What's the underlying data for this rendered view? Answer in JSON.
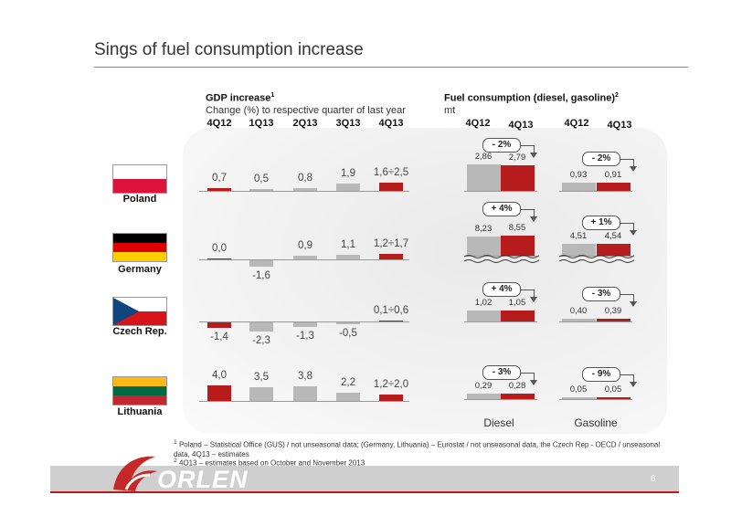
{
  "title": "Sings of fuel consumption increase",
  "gdp": {
    "title": "GDP increase",
    "title_sup": "1",
    "subtitle": "Change (%) to respective quarter of last year",
    "periods": [
      "4Q12",
      "1Q13",
      "2Q13",
      "3Q13",
      "4Q13"
    ]
  },
  "fuel": {
    "title": "Fuel consumption (diesel, gasoline)",
    "title_sup": "2",
    "unit": "mt",
    "diesel_periods": [
      "4Q12",
      "4Q13"
    ],
    "gasoline_periods": [
      "4Q12",
      "4Q13"
    ],
    "diesel_label": "Diesel",
    "gasoline_label": "Gasoline"
  },
  "countries": [
    {
      "name": "Poland",
      "flag": [
        "#ffffff",
        "#dc143c"
      ]
    },
    {
      "name": "Germany",
      "flag": [
        "#000000",
        "#dd0000",
        "#ffce00"
      ]
    },
    {
      "name": "Czech Rep.",
      "flag": "czech"
    },
    {
      "name": "Lithuania",
      "flag": [
        "#fdb913",
        "#006a44",
        "#c1272d"
      ]
    }
  ],
  "chart_data": [
    {
      "type": "bar",
      "title": "GDP increase",
      "subtitle": "Change (%) to respective quarter of last year",
      "categories": [
        "4Q12",
        "1Q13",
        "2Q13",
        "3Q13",
        "4Q13"
      ],
      "series": [
        {
          "name": "Poland",
          "values": [
            0.7,
            0.5,
            0.8,
            1.9,
            2.1
          ],
          "labels": [
            "0,7",
            "0,5",
            "0,8",
            "1,9",
            "1,6÷2,5"
          ]
        },
        {
          "name": "Germany",
          "values": [
            0.0,
            -1.6,
            0.9,
            1.1,
            1.45
          ],
          "labels": [
            "0,0",
            "-1,6",
            "0,9",
            "1,1",
            "1,2÷1,7"
          ]
        },
        {
          "name": "Czech Rep.",
          "values": [
            -1.4,
            -2.3,
            -1.3,
            -0.5,
            0.35
          ],
          "labels": [
            "-1,4",
            "-2,3",
            "-1,3",
            "-0,5",
            "0,1÷0,6"
          ]
        },
        {
          "name": "Lithuania",
          "values": [
            4.0,
            3.5,
            3.8,
            2.2,
            1.6
          ],
          "labels": [
            "4,0",
            "3,5",
            "3,8",
            "2,2",
            "1,2÷2,0"
          ]
        }
      ]
    },
    {
      "type": "bar",
      "title": "Fuel consumption (diesel, gasoline)",
      "ylabel": "mt",
      "categories": [
        "4Q12",
        "4Q13"
      ],
      "series": [
        {
          "name": "Poland",
          "diesel": [
            2.86,
            2.79
          ],
          "gasoline": [
            0.93,
            0.91
          ],
          "diesel_labels": [
            "2,86",
            "2,79"
          ],
          "gasoline_labels": [
            "0,93",
            "0,91"
          ],
          "diesel_change": "- 2%",
          "gasoline_change": "- 2%"
        },
        {
          "name": "Germany",
          "diesel": [
            8.23,
            8.55
          ],
          "gasoline": [
            4.51,
            4.54
          ],
          "diesel_labels": [
            "8,23",
            "8,55"
          ],
          "gasoline_labels": [
            "4,51",
            "4,54"
          ],
          "diesel_change": "+ 4%",
          "gasoline_change": "+ 1%"
        },
        {
          "name": "Czech Rep.",
          "diesel": [
            1.02,
            1.05
          ],
          "gasoline": [
            0.4,
            0.39
          ],
          "diesel_labels": [
            "1,02",
            "1,05"
          ],
          "gasoline_labels": [
            "0,40",
            "0,39"
          ],
          "diesel_change": "+ 4%",
          "gasoline_change": "- 3%"
        },
        {
          "name": "Lithuania",
          "diesel": [
            0.29,
            0.28
          ],
          "gasoline": [
            0.05,
            0.05
          ],
          "diesel_labels": [
            "0,29",
            "0,28"
          ],
          "gasoline_labels": [
            "0,05",
            "0,05"
          ],
          "diesel_change": "- 3%",
          "gasoline_change": "- 9%"
        }
      ]
    }
  ],
  "footnotes": [
    {
      "sup": "1",
      "text": "Poland – Statistical Office (GUS) / not unseasonal data; (Germany, Lithuania) – Eurostat / not unseasonal data, the Czech Rep - OECD / unseasonal data, 4Q13 – estimates"
    },
    {
      "sup": "2",
      "text": "4Q13 – estimates based on October and November 2013"
    }
  ],
  "footer": {
    "logo": "ORLEN",
    "page": "6"
  },
  "colors": {
    "accent": "#b71c1c",
    "grey_bar": "#b8b8b8"
  }
}
